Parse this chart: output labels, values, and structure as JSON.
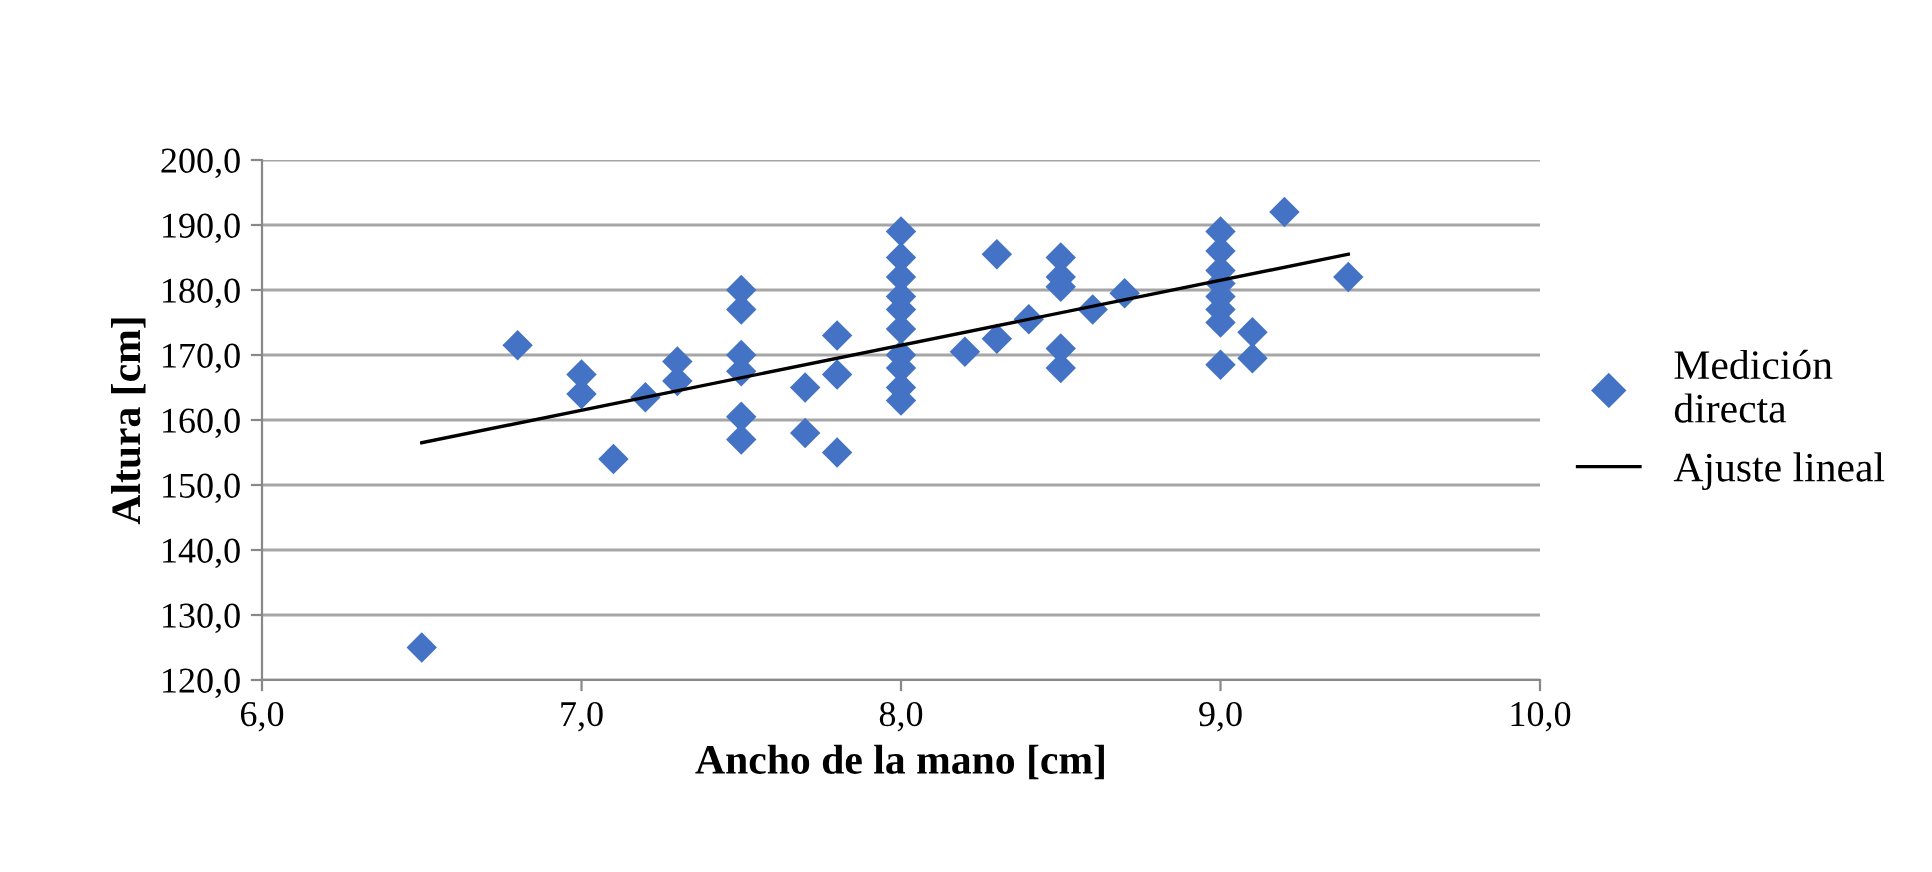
{
  "chart_data": {
    "type": "scatter",
    "xlabel": "Ancho de la mano [cm]",
    "ylabel": "Altura [cm]",
    "xlim": [
      6.0,
      10.0
    ],
    "xticks": [
      {
        "value": 6,
        "label": "6,0"
      },
      {
        "value": 7,
        "label": "7,0"
      },
      {
        "value": 8,
        "label": "8,0"
      },
      {
        "value": 9,
        "label": "9,0"
      },
      {
        "value": 10,
        "label": "10,0"
      }
    ],
    "ylim": [
      120,
      200
    ],
    "yticks": [
      {
        "value": 120,
        "label": "120,0"
      },
      {
        "value": 130,
        "label": "130,0"
      },
      {
        "value": 140,
        "label": "140,0"
      },
      {
        "value": 150,
        "label": "150,0"
      },
      {
        "value": 160,
        "label": "160,0"
      },
      {
        "value": 170,
        "label": "170,0"
      },
      {
        "value": 180,
        "label": "180,0"
      },
      {
        "value": 190,
        "label": "190,0"
      },
      {
        "value": 200,
        "label": "200,0"
      }
    ],
    "grid": "y",
    "legend": "right",
    "series": [
      {
        "name": "Medición directa",
        "marker": "diamond",
        "color": "#4472c4",
        "x": [
          6.5,
          6.8,
          7.0,
          7.0,
          7.1,
          7.2,
          7.3,
          7.3,
          7.5,
          7.5,
          7.5,
          7.5,
          7.5,
          7.5,
          7.7,
          7.7,
          7.8,
          7.8,
          7.8,
          8.0,
          8.0,
          8.0,
          8.0,
          8.0,
          8.0,
          8.0,
          8.0,
          8.0,
          8.0,
          8.2,
          8.3,
          8.3,
          8.4,
          8.5,
          8.5,
          8.5,
          8.5,
          8.5,
          8.6,
          8.7,
          9.0,
          9.0,
          9.0,
          9.0,
          9.0,
          9.0,
          9.0,
          9.0,
          9.1,
          9.1,
          9.2,
          9.4
        ],
        "values": [
          125,
          171.5,
          167,
          164,
          154,
          163.5,
          169,
          166,
          180,
          177,
          170,
          167.5,
          160.5,
          157,
          165,
          158,
          173,
          167,
          155,
          189,
          185,
          182,
          179,
          177,
          174,
          170,
          168,
          165,
          163,
          170.5,
          185.5,
          172.5,
          175.5,
          185,
          182,
          180.5,
          171,
          168,
          177,
          179.5,
          189,
          186,
          183,
          181,
          179,
          177,
          175,
          168.5,
          173.5,
          169.5,
          192,
          182
        ]
      },
      {
        "name": "Ajuste lineal",
        "type": "line",
        "color": "#000000",
        "line_style": "solid",
        "x": [
          6.5,
          9.4
        ],
        "values": [
          156.5,
          185.5
        ]
      }
    ]
  }
}
